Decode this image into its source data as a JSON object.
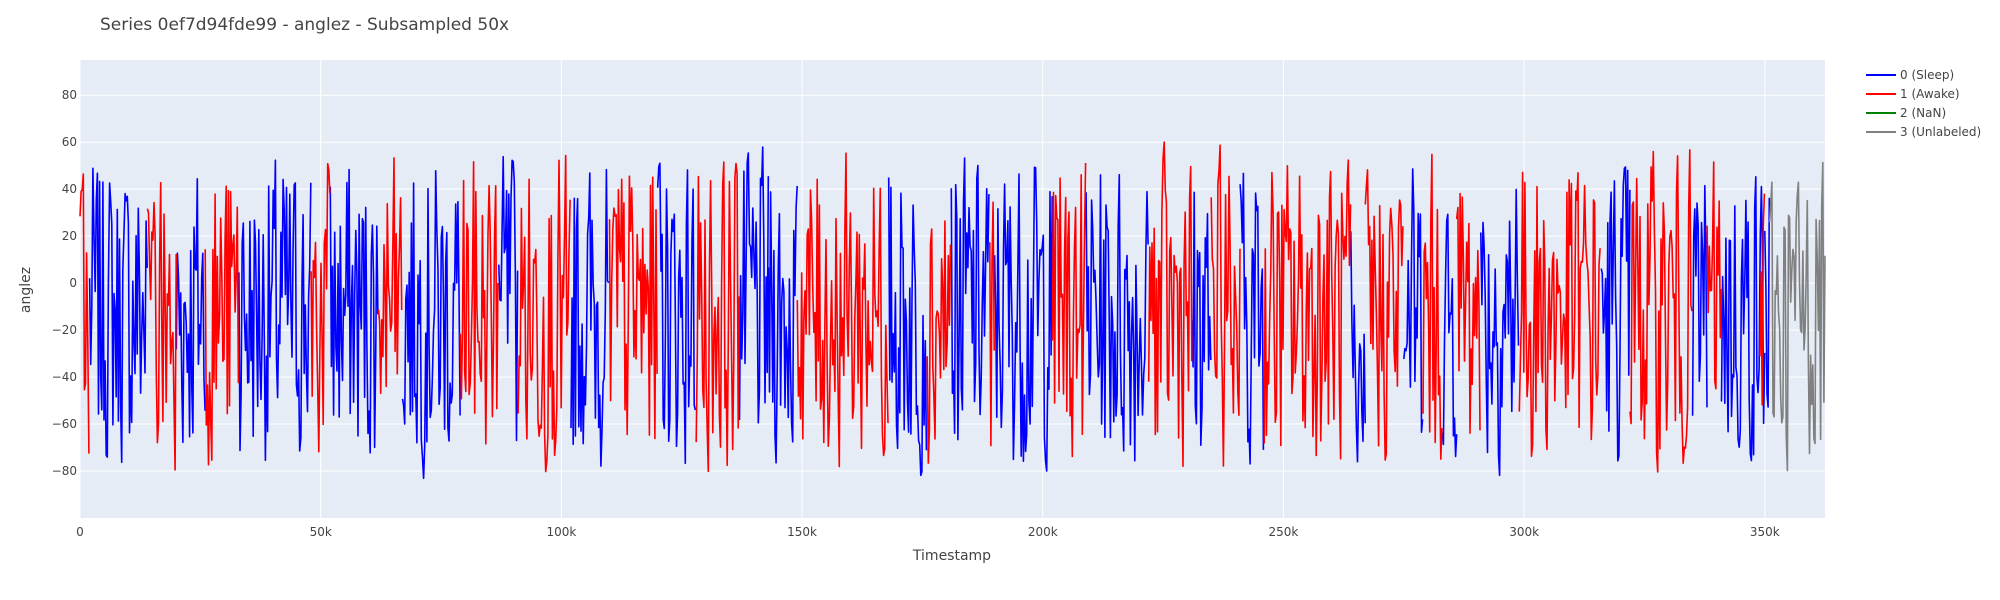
{
  "chart_data": {
    "type": "line",
    "title": "Series 0ef7d94fde99 - anglez - Subsampled 50x",
    "xlabel": "Timestamp",
    "ylabel": "anglez",
    "xlim": [
      0,
      362500
    ],
    "ylim": [
      -100,
      95
    ],
    "x_ticks": [
      0,
      50000,
      100000,
      150000,
      200000,
      250000,
      300000,
      350000
    ],
    "x_tick_labels": [
      "0",
      "50k",
      "100k",
      "150k",
      "200k",
      "250k",
      "300k",
      "350k"
    ],
    "y_ticks": [
      -80,
      -60,
      -40,
      -20,
      0,
      20,
      40,
      60,
      80
    ],
    "y_tick_labels": [
      "−80",
      "−60",
      "−40",
      "−20",
      "0",
      "20",
      "40",
      "60",
      "80"
    ],
    "grid": true,
    "legend_position": "top-right",
    "series": [
      {
        "name": "0 (Sleep)",
        "color": "#0000ff",
        "segments": [
          [
            2000,
            14000
          ],
          [
            20000,
            26000
          ],
          [
            33000,
            48000
          ],
          [
            52000,
            62000
          ],
          [
            67000,
            79000
          ],
          [
            87000,
            91000
          ],
          [
            102000,
            110000
          ],
          [
            120000,
            128000
          ],
          [
            137000,
            143000
          ],
          [
            143000,
            149000
          ],
          [
            168000,
            176000
          ],
          [
            181000,
            189000
          ],
          [
            190000,
            202000
          ],
          [
            209000,
            222000
          ],
          [
            231000,
            235000
          ],
          [
            241000,
            246000
          ],
          [
            264000,
            267000
          ],
          [
            275000,
            279000
          ],
          [
            283000,
            286000
          ],
          [
            291000,
            299000
          ],
          [
            316000,
            322000
          ],
          [
            335000,
            338000
          ],
          [
            341000,
            350000
          ],
          [
            350000,
            351000
          ]
        ]
      },
      {
        "name": "1 (Awake)",
        "color": "#ff0000",
        "segments": [
          [
            0,
            2000
          ],
          [
            14000,
            20000
          ],
          [
            26000,
            33000
          ],
          [
            48000,
            52000
          ],
          [
            62000,
            67000
          ],
          [
            79000,
            87000
          ],
          [
            91000,
            102000
          ],
          [
            110000,
            120000
          ],
          [
            128000,
            137000
          ],
          [
            149000,
            168000
          ],
          [
            176000,
            181000
          ],
          [
            189000,
            190000
          ],
          [
            202000,
            209000
          ],
          [
            222000,
            231000
          ],
          [
            235000,
            241000
          ],
          [
            246000,
            264000
          ],
          [
            267000,
            275000
          ],
          [
            279000,
            283000
          ],
          [
            286000,
            291000
          ],
          [
            299000,
            316000
          ],
          [
            322000,
            335000
          ],
          [
            338000,
            341000
          ],
          [
            349000,
            350000
          ]
        ]
      },
      {
        "name": "2 (NaN)",
        "color": "#008000",
        "segments": []
      },
      {
        "name": "3 (Unlabeled)",
        "color": "#808080",
        "segments": [
          [
            351000,
            362500
          ]
        ]
      }
    ]
  }
}
